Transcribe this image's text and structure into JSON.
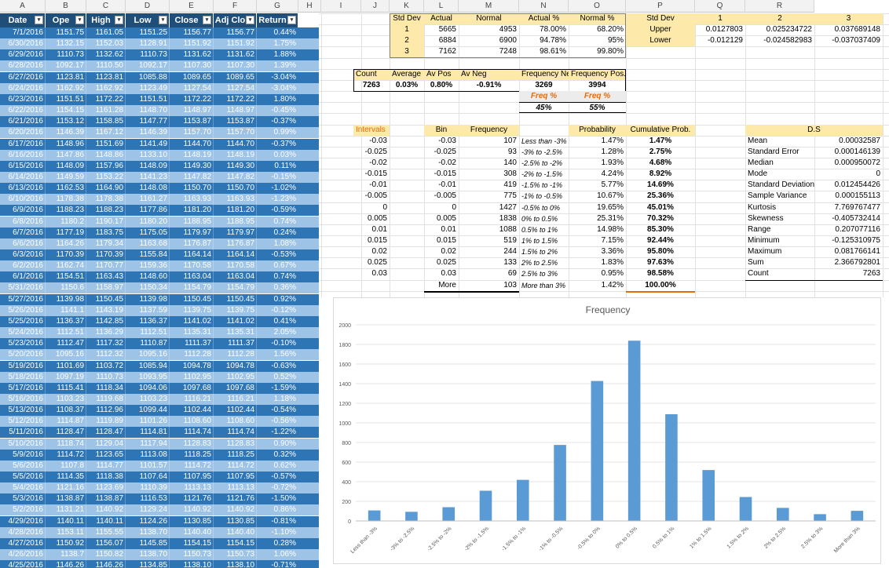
{
  "columns": [
    "A",
    "B",
    "C",
    "D",
    "E",
    "F",
    "G",
    "H",
    "I",
    "J",
    "K",
    "L",
    "M",
    "N",
    "O",
    "P",
    "Q",
    "R"
  ],
  "table": {
    "headers": [
      "Date",
      "Ope",
      "High",
      "Low",
      "Close",
      "Adj Clo",
      "Return"
    ],
    "rows": [
      [
        "7/1/2016",
        "1151.75",
        "1161.05",
        "1151.25",
        "1156.77",
        "1156.77",
        "0.44%"
      ],
      [
        "6/30/2016",
        "1132.15",
        "1152.03",
        "1128.91",
        "1151.92",
        "1151.92",
        "1.75%"
      ],
      [
        "6/29/2016",
        "1110.73",
        "1132.62",
        "1110.73",
        "1131.62",
        "1131.62",
        "1.88%"
      ],
      [
        "6/28/2016",
        "1092.17",
        "1110.50",
        "1092.17",
        "1107.30",
        "1107.30",
        "1.39%"
      ],
      [
        "6/27/2016",
        "1123.81",
        "1123.81",
        "1085.88",
        "1089.65",
        "1089.65",
        "-3.04%"
      ],
      [
        "6/24/2016",
        "1162.92",
        "1162.92",
        "1123.49",
        "1127.54",
        "1127.54",
        "-3.04%"
      ],
      [
        "6/23/2016",
        "1151.51",
        "1172.22",
        "1151.51",
        "1172.22",
        "1172.22",
        "1.80%"
      ],
      [
        "6/22/2016",
        "1154.15",
        "1161.28",
        "1148.70",
        "1148.97",
        "1148.97",
        "-0.45%"
      ],
      [
        "6/21/2016",
        "1153.12",
        "1158.85",
        "1147.77",
        "1153.87",
        "1153.87",
        "-0.37%"
      ],
      [
        "6/20/2016",
        "1146.39",
        "1167.12",
        "1146.39",
        "1157.70",
        "1157.70",
        "0.99%"
      ],
      [
        "6/17/2016",
        "1148.96",
        "1151.69",
        "1141.49",
        "1144.70",
        "1144.70",
        "-0.37%"
      ],
      [
        "6/16/2016",
        "1147.86",
        "1148.86",
        "1133.10",
        "1148.19",
        "1148.19",
        "0.03%"
      ],
      [
        "6/15/2016",
        "1148.09",
        "1157.96",
        "1148.09",
        "1149.30",
        "1149.30",
        "0.11%"
      ],
      [
        "6/14/2016",
        "1149.59",
        "1153.22",
        "1141.23",
        "1147.82",
        "1147.82",
        "-0.15%"
      ],
      [
        "6/13/2016",
        "1162.53",
        "1164.90",
        "1148.08",
        "1150.70",
        "1150.70",
        "-1.02%"
      ],
      [
        "6/10/2016",
        "1178.38",
        "1178.38",
        "1161.27",
        "1163.93",
        "1163.93",
        "-1.23%"
      ],
      [
        "6/9/2016",
        "1188.23",
        "1188.23",
        "1177.86",
        "1181.20",
        "1181.20",
        "-0.59%"
      ],
      [
        "6/8/2016",
        "1180.2",
        "1190.17",
        "1180.20",
        "1188.95",
        "1188.95",
        "0.74%"
      ],
      [
        "6/7/2016",
        "1177.19",
        "1183.75",
        "1175.05",
        "1179.97",
        "1179.97",
        "0.24%"
      ],
      [
        "6/6/2016",
        "1164.26",
        "1179.34",
        "1163.68",
        "1176.87",
        "1176.87",
        "1.08%"
      ],
      [
        "6/3/2016",
        "1170.39",
        "1170.39",
        "1155.84",
        "1164.14",
        "1164.14",
        "-0.53%"
      ],
      [
        "6/2/2016",
        "1162.74",
        "1170.77",
        "1159.36",
        "1170.58",
        "1170.58",
        "0.67%"
      ],
      [
        "6/1/2016",
        "1154.51",
        "1163.43",
        "1148.60",
        "1163.04",
        "1163.04",
        "0.74%"
      ],
      [
        "5/31/2016",
        "1150.6",
        "1158.97",
        "1150.34",
        "1154.79",
        "1154.79",
        "0.36%"
      ],
      [
        "5/27/2016",
        "1139.98",
        "1150.45",
        "1139.98",
        "1150.45",
        "1150.45",
        "0.92%"
      ],
      [
        "5/26/2016",
        "1141.1",
        "1143.19",
        "1137.59",
        "1139.75",
        "1139.75",
        "-0.12%"
      ],
      [
        "5/25/2016",
        "1136.37",
        "1142.85",
        "1136.37",
        "1141.02",
        "1141.02",
        "0.41%"
      ],
      [
        "5/24/2016",
        "1112.51",
        "1136.29",
        "1112.51",
        "1135.31",
        "1135.31",
        "2.05%"
      ],
      [
        "5/23/2016",
        "1112.47",
        "1117.32",
        "1110.87",
        "1111.37",
        "1111.37",
        "-0.10%"
      ],
      [
        "5/20/2016",
        "1095.16",
        "1112.32",
        "1095.16",
        "1112.28",
        "1112.28",
        "1.56%"
      ],
      [
        "5/19/2016",
        "1101.69",
        "1103.72",
        "1085.94",
        "1094.78",
        "1094.78",
        "-0.63%"
      ],
      [
        "5/18/2016",
        "1097.19",
        "1110.73",
        "1093.95",
        "1102.95",
        "1102.95",
        "0.52%"
      ],
      [
        "5/17/2016",
        "1115.41",
        "1118.34",
        "1094.06",
        "1097.68",
        "1097.68",
        "-1.59%"
      ],
      [
        "5/16/2016",
        "1103.23",
        "1119.68",
        "1103.23",
        "1116.21",
        "1116.21",
        "1.18%"
      ],
      [
        "5/13/2016",
        "1108.37",
        "1112.96",
        "1099.44",
        "1102.44",
        "1102.44",
        "-0.54%"
      ],
      [
        "5/12/2016",
        "1114.87",
        "1119.89",
        "1101.26",
        "1108.60",
        "1108.60",
        "-0.56%"
      ],
      [
        "5/11/2016",
        "1128.47",
        "1128.47",
        "1114.81",
        "1114.74",
        "1114.74",
        "-1.22%"
      ],
      [
        "5/10/2016",
        "1118.74",
        "1129.04",
        "1117.94",
        "1128.83",
        "1128.83",
        "0.90%"
      ],
      [
        "5/9/2016",
        "1114.72",
        "1123.65",
        "1113.08",
        "1118.25",
        "1118.25",
        "0.32%"
      ],
      [
        "5/6/2016",
        "1107.8",
        "1114.77",
        "1101.57",
        "1114.72",
        "1114.72",
        "0.62%"
      ],
      [
        "5/5/2016",
        "1114.35",
        "1118.38",
        "1107.64",
        "1107.95",
        "1107.95",
        "-0.57%"
      ],
      [
        "5/4/2016",
        "1121.16",
        "1123.69",
        "1110.39",
        "1113.13",
        "1113.13",
        "-0.72%"
      ],
      [
        "5/3/2016",
        "1138.87",
        "1138.87",
        "1116.53",
        "1121.76",
        "1121.76",
        "-1.50%"
      ],
      [
        "5/2/2016",
        "1131.21",
        "1140.92",
        "1129.24",
        "1140.92",
        "1140.92",
        "0.86%"
      ],
      [
        "4/29/2016",
        "1140.11",
        "1140.11",
        "1124.26",
        "1130.85",
        "1130.85",
        "-0.81%"
      ],
      [
        "4/28/2016",
        "1153.11",
        "1155.55",
        "1138.70",
        "1140.40",
        "1140.40",
        "-1.10%"
      ],
      [
        "4/27/2016",
        "1150.92",
        "1156.07",
        "1145.85",
        "1154.15",
        "1154.15",
        "0.28%"
      ],
      [
        "4/26/2016",
        "1138.7",
        "1150.82",
        "1138.70",
        "1150.73",
        "1150.73",
        "1.06%"
      ],
      [
        "4/25/2016",
        "1146.26",
        "1146.26",
        "1134.85",
        "1138.10",
        "1138.10",
        "-0.71%"
      ]
    ]
  },
  "stddev": {
    "headers": [
      "Std Dev",
      "Actual",
      "Normal",
      "Actual %",
      "Normal %"
    ],
    "rows": [
      [
        "1",
        "5665",
        "4953",
        "78.00%",
        "68.20%"
      ],
      [
        "2",
        "6884",
        "6900",
        "94.78%",
        "95%"
      ],
      [
        "3",
        "7162",
        "7248",
        "98.61%",
        "99.80%"
      ]
    ]
  },
  "bounds": {
    "headers": [
      "Std Dev",
      "1",
      "2",
      "3"
    ],
    "rows": [
      [
        "Upper",
        "0.0127803",
        "0.025234722",
        "0.037689148"
      ],
      [
        "Lower",
        "-0.012129",
        "-0.024582983",
        "-0.037037409"
      ]
    ]
  },
  "counts": {
    "headers": [
      "Count",
      "Average",
      "Av Pos",
      "Av Neg",
      "Frequency Ne",
      "Frequency Pos."
    ],
    "values": [
      "7263",
      "0.03%",
      "0.80%",
      "-0.91%",
      "3269",
      "3994"
    ],
    "freq_labels": [
      "Freq %",
      "Freq %"
    ],
    "freq_values": [
      "45%",
      "55%"
    ]
  },
  "intervals": {
    "header": "Intervals",
    "values": [
      "-0.03",
      "-0.025",
      "-0.02",
      "-0.015",
      "-0.01",
      "-0.005",
      "0",
      "0.005",
      "0.01",
      "0.015",
      "0.02",
      "0.025",
      "0.03"
    ]
  },
  "bins": {
    "headers": [
      "Bin",
      "Frequency",
      "",
      "Probability",
      "Cumulative Prob."
    ],
    "rows": [
      [
        "-0.03",
        "107",
        "Less than -3%",
        "1.47%",
        "1.47%"
      ],
      [
        "-0.025",
        "93",
        "-3% to -2.5%",
        "1.28%",
        "2.75%"
      ],
      [
        "-0.02",
        "140",
        "-2.5% to -2%",
        "1.93%",
        "4.68%"
      ],
      [
        "-0.015",
        "308",
        "-2% to -1.5%",
        "4.24%",
        "8.92%"
      ],
      [
        "-0.01",
        "419",
        "-1.5% to -1%",
        "5.77%",
        "14.69%"
      ],
      [
        "-0.005",
        "775",
        "-1% to -0.5%",
        "10.67%",
        "25.36%"
      ],
      [
        "0",
        "1427",
        "-0.5% to 0%",
        "19.65%",
        "45.01%"
      ],
      [
        "0.005",
        "1838",
        "0% to 0.5%",
        "25.31%",
        "70.32%"
      ],
      [
        "0.01",
        "1088",
        "0.5% to 1%",
        "14.98%",
        "85.30%"
      ],
      [
        "0.015",
        "519",
        "1% to 1.5%",
        "7.15%",
        "92.44%"
      ],
      [
        "0.02",
        "244",
        "1.5% to 2%",
        "3.36%",
        "95.80%"
      ],
      [
        "0.025",
        "133",
        "2% to 2.5%",
        "1.83%",
        "97.63%"
      ],
      [
        "0.03",
        "69",
        "2.5% to 3%",
        "0.95%",
        "98.58%"
      ],
      [
        "More",
        "103",
        "More than 3%",
        "1.42%",
        "100.00%"
      ]
    ]
  },
  "ds": {
    "header": "D.S",
    "rows": [
      [
        "Mean",
        "0.00032587"
      ],
      [
        "Standard Error",
        "0.000146139"
      ],
      [
        "Median",
        "0.000950072"
      ],
      [
        "Mode",
        "0"
      ],
      [
        "Standard Deviation",
        "0.012454426"
      ],
      [
        "Sample Variance",
        "0.000155113"
      ],
      [
        "Kurtosis",
        "7.769767477"
      ],
      [
        "Skewness",
        "-0.405732414"
      ],
      [
        "Range",
        "0.207077116"
      ],
      [
        "Minimum",
        "-0.125310975"
      ],
      [
        "Maximum",
        "0.081766141"
      ],
      [
        "Sum",
        "2.366792801"
      ],
      [
        "Count",
        "7263"
      ]
    ]
  },
  "chart_data": {
    "type": "bar",
    "title": "Frequency",
    "categories": [
      "Less than -3%",
      "-3% to -2.5%",
      "-2.5% to -2%",
      "-2% to -1.5%",
      "-1.5% to -1%",
      "-1% to -0.5%",
      "-0.5% to 0%",
      "0% to 0.5%",
      "0.5% to 1%",
      "1% to 1.5%",
      "1.5% to 2%",
      "2% to 2.5%",
      "2.5% to 3%",
      "More than 3%"
    ],
    "values": [
      107,
      93,
      140,
      308,
      419,
      775,
      1427,
      1838,
      1088,
      519,
      244,
      133,
      69,
      103
    ],
    "ylim": [
      0,
      2000
    ],
    "yticks": [
      "0",
      "200",
      "400",
      "600",
      "800",
      "1000",
      "1200",
      "1400",
      "1600",
      "1800",
      "2000"
    ],
    "color": "#5b9bd5",
    "grid": true
  },
  "colors": {
    "dark_row": "#2e75b6",
    "light_row": "#9dc3e6",
    "header": "#1f4e79",
    "yellow": "#fde9a9",
    "orange": "#e46c0a"
  }
}
